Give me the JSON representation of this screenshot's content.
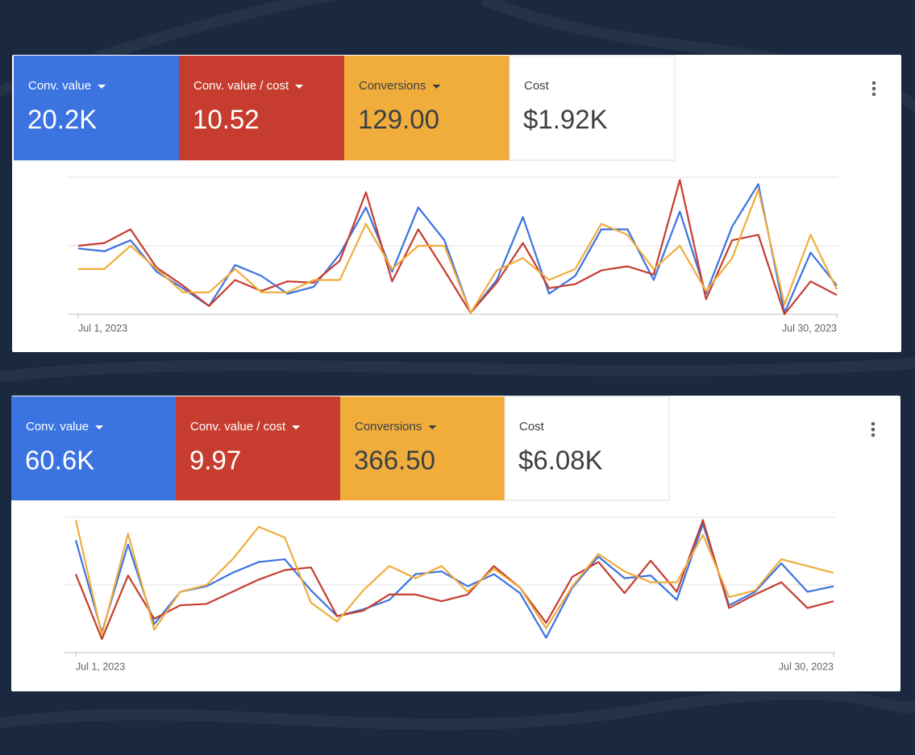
{
  "panels": [
    {
      "metrics": [
        {
          "label": "Conv. value",
          "value": "20.2K"
        },
        {
          "label": "Conv. value / cost",
          "value": "10.52"
        },
        {
          "label": "Conversions",
          "value": "129.00"
        },
        {
          "label": "Cost",
          "value": "$1.92K"
        }
      ]
    },
    {
      "metrics": [
        {
          "label": "Conv. value",
          "value": "60.6K"
        },
        {
          "label": "Conv. value / cost",
          "value": "9.97"
        },
        {
          "label": "Conversions",
          "value": "366.50"
        },
        {
          "label": "Cost",
          "value": "$6.08K"
        }
      ]
    }
  ],
  "chart_data": [
    {
      "type": "line",
      "categories": [
        "Jul 1, 2023",
        null,
        null,
        null,
        null,
        null,
        null,
        null,
        null,
        null,
        null,
        null,
        null,
        null,
        null,
        null,
        null,
        null,
        null,
        null,
        null,
        null,
        null,
        null,
        null,
        null,
        null,
        null,
        null,
        "Jul 30, 2023"
      ],
      "ylim": [
        0,
        100
      ],
      "gridlines": [
        0,
        50,
        100
      ],
      "series": [
        {
          "color": "#3b73e0",
          "values": [
            48,
            46,
            54,
            31,
            19,
            6,
            36,
            28,
            15,
            20,
            44,
            78,
            31,
            78,
            54,
            1,
            25,
            71,
            15,
            28,
            62,
            62,
            25,
            75,
            15,
            64,
            95,
            1,
            45,
            21
          ]
        },
        {
          "color": "#c63d2f",
          "values": [
            50,
            52,
            62,
            34,
            21,
            6,
            25,
            17,
            24,
            23,
            39,
            89,
            24,
            62,
            32,
            1,
            23,
            52,
            19,
            22,
            32,
            35,
            29,
            98,
            11,
            54,
            58,
            0,
            24,
            14
          ]
        },
        {
          "color": "#f0ad3c",
          "values": [
            33,
            33,
            50,
            33,
            16,
            16,
            33,
            16,
            16,
            25,
            25,
            66,
            33,
            50,
            50,
            1,
            32,
            41,
            25,
            33,
            66,
            58,
            33,
            50,
            17,
            41,
            91,
            7,
            58,
            18
          ]
        }
      ]
    },
    {
      "type": "line",
      "categories": [
        "Jul 1, 2023",
        null,
        null,
        null,
        null,
        null,
        null,
        null,
        null,
        null,
        null,
        null,
        null,
        null,
        null,
        null,
        null,
        null,
        null,
        null,
        null,
        null,
        null,
        null,
        null,
        null,
        null,
        null,
        null,
        "Jul 30, 2023"
      ],
      "ylim": [
        0,
        100
      ],
      "gridlines": [
        0,
        50,
        100
      ],
      "series": [
        {
          "color": "#3b73e0",
          "values": [
            83,
            15,
            80,
            21,
            45,
            49,
            59,
            67,
            69,
            46,
            27,
            32,
            39,
            58,
            60,
            49,
            58,
            44,
            11,
            48,
            71,
            55,
            57,
            39,
            95,
            35,
            45,
            66,
            45,
            49
          ]
        },
        {
          "color": "#c63d2f",
          "values": [
            58,
            10,
            57,
            25,
            35,
            36,
            45,
            54,
            61,
            63,
            27,
            31,
            43,
            43,
            38,
            43,
            64,
            48,
            22,
            56,
            67,
            44,
            68,
            45,
            98,
            33,
            43,
            52,
            33,
            38
          ]
        },
        {
          "color": "#f0ad3c",
          "values": [
            98,
            13,
            88,
            17,
            45,
            50,
            69,
            93,
            85,
            37,
            23,
            46,
            64,
            55,
            64,
            45,
            62,
            48,
            18,
            49,
            73,
            60,
            52,
            52,
            87,
            41,
            46,
            69,
            64,
            59
          ]
        }
      ]
    }
  ]
}
